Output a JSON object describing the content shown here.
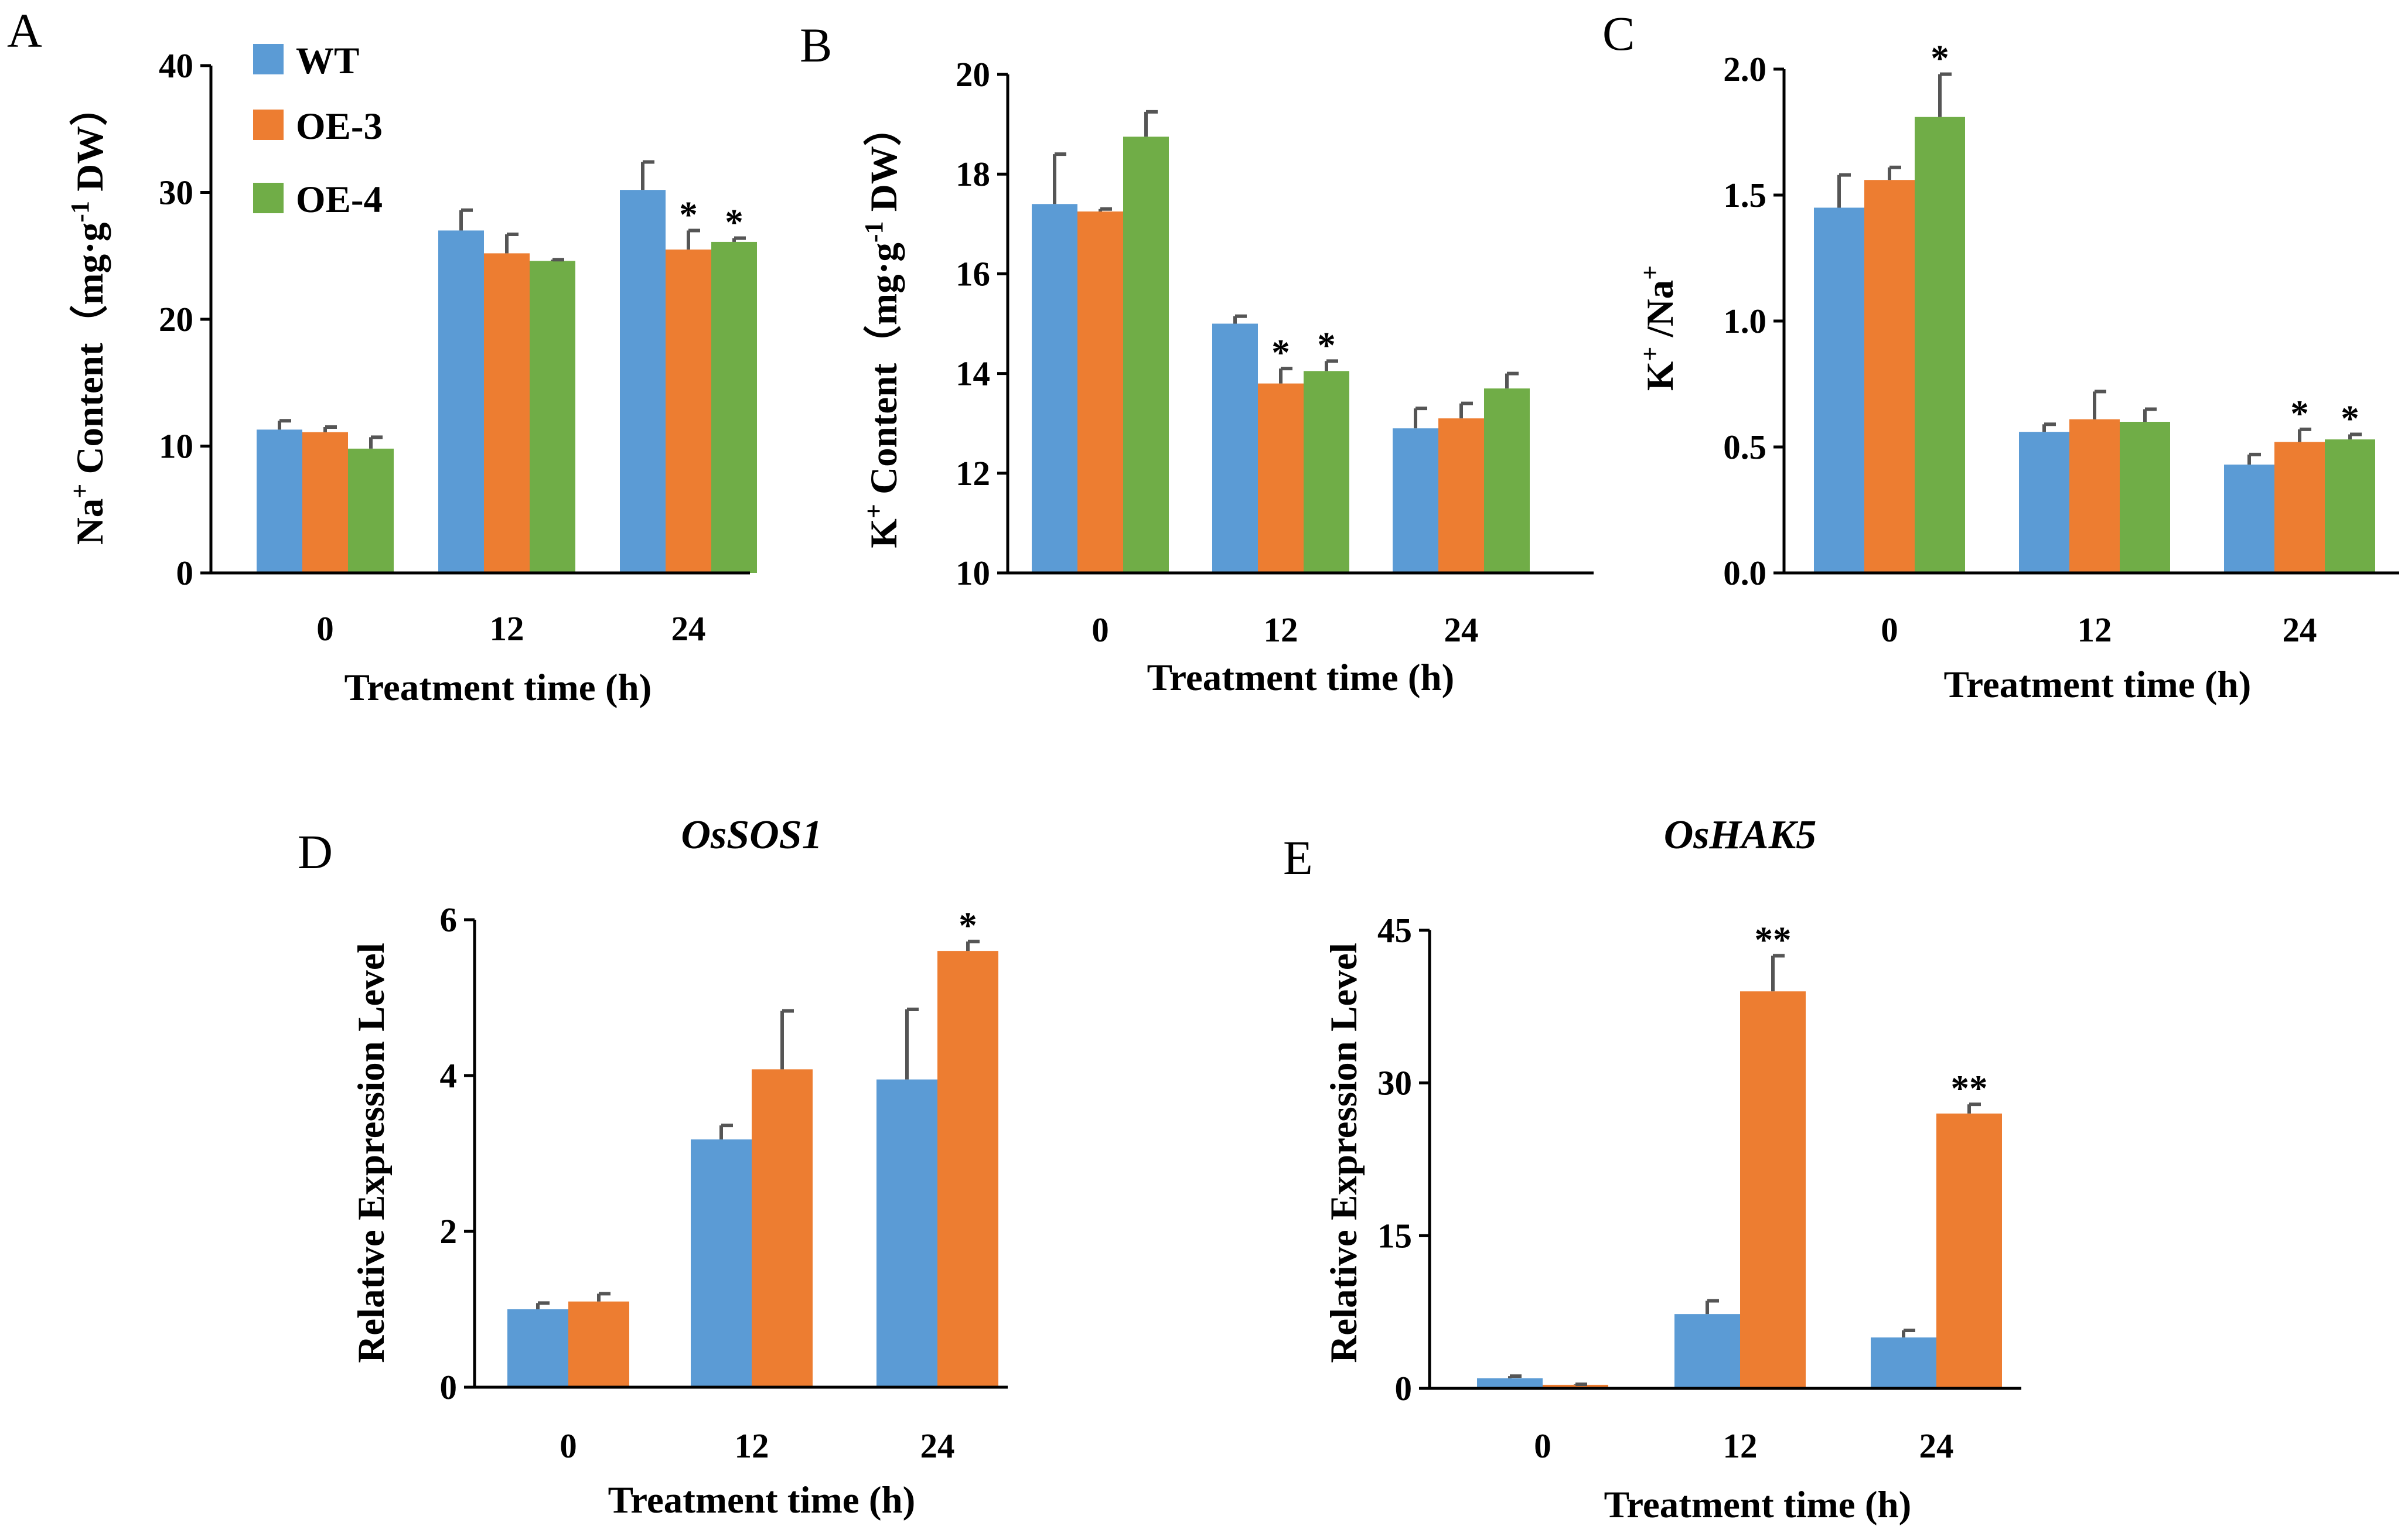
{
  "colors": {
    "WT": "#5B9BD5",
    "OE-3": "#ED7D31",
    "OE-4": "#70AD47"
  },
  "legend": [
    {
      "name": "WT",
      "color": "#5B9BD5"
    },
    {
      "name": "OE-3",
      "color": "#ED7D31"
    },
    {
      "name": "OE-4",
      "color": "#70AD47"
    }
  ],
  "chart_data": [
    {
      "panel": "A",
      "type": "bar",
      "title": "",
      "categories": [
        "0",
        "12",
        "24"
      ],
      "xlabel": "Treatment time (h)",
      "ylabel_main": "Na",
      "ylabel_sup": "+",
      "ylabel_rest": " Content（mg·g",
      "ylabel_sup2": "-1",
      "ylabel_end": " DW）",
      "ylim": [
        0,
        40
      ],
      "yticks": [
        "0",
        "10",
        "20",
        "30",
        "40"
      ],
      "series": [
        {
          "name": "WT",
          "values": [
            11.3,
            27.0,
            30.2
          ],
          "errors": [
            0.7,
            1.6,
            2.2
          ],
          "sig": [
            "",
            "",
            ""
          ]
        },
        {
          "name": "OE-3",
          "values": [
            11.1,
            25.2,
            25.5
          ],
          "errors": [
            0.4,
            1.5,
            1.5
          ],
          "sig": [
            "",
            "",
            "*"
          ]
        },
        {
          "name": "OE-4",
          "values": [
            9.8,
            24.6,
            26.1
          ],
          "errors": [
            0.9,
            0.1,
            0.3
          ],
          "sig": [
            "",
            "",
            "*"
          ]
        }
      ]
    },
    {
      "panel": "B",
      "type": "bar",
      "title": "",
      "categories": [
        "0",
        "12",
        "24"
      ],
      "xlabel": "Treatment time (h)",
      "ylabel_main": "K",
      "ylabel_sup": "+",
      "ylabel_rest": " Content（mg·g",
      "ylabel_sup2": "-1",
      "ylabel_end": " DW）",
      "ylim": [
        10,
        20
      ],
      "yticks": [
        "10",
        "12",
        "14",
        "16",
        "18",
        "20"
      ],
      "series": [
        {
          "name": "WT",
          "values": [
            17.4,
            15.0,
            12.9
          ],
          "errors": [
            1.0,
            0.15,
            0.4
          ],
          "sig": [
            "",
            "",
            ""
          ]
        },
        {
          "name": "OE-3",
          "values": [
            17.25,
            13.8,
            13.1
          ],
          "errors": [
            0.05,
            0.3,
            0.3
          ],
          "sig": [
            "",
            "*",
            ""
          ]
        },
        {
          "name": "OE-4",
          "values": [
            18.75,
            14.05,
            13.7
          ],
          "errors": [
            0.5,
            0.2,
            0.3
          ],
          "sig": [
            "",
            "*",
            ""
          ]
        }
      ]
    },
    {
      "panel": "C",
      "type": "bar",
      "title": "",
      "categories": [
        "0",
        "12",
        "24"
      ],
      "xlabel": "Treatment time (h)",
      "ylabel_main": "K",
      "ylabel_sup": "+",
      "ylabel_rest": " /Na",
      "ylabel_sup2": "+",
      "ylabel_end": "",
      "ylim": [
        0,
        2.0
      ],
      "yticks": [
        "0.0",
        "0.5",
        "1.0",
        "1.5",
        "2.0"
      ],
      "series": [
        {
          "name": "WT",
          "values": [
            1.45,
            0.56,
            0.43
          ],
          "errors": [
            0.13,
            0.03,
            0.04
          ],
          "sig": [
            "",
            "",
            ""
          ]
        },
        {
          "name": "OE-3",
          "values": [
            1.56,
            0.61,
            0.52
          ],
          "errors": [
            0.05,
            0.11,
            0.05
          ],
          "sig": [
            "",
            "",
            "*"
          ]
        },
        {
          "name": "OE-4",
          "values": [
            1.81,
            0.6,
            0.53
          ],
          "errors": [
            0.17,
            0.05,
            0.02
          ],
          "sig": [
            "*",
            "",
            "*"
          ]
        }
      ]
    },
    {
      "panel": "D",
      "type": "bar",
      "title": "OsSOS1",
      "categories": [
        "0",
        "12",
        "24"
      ],
      "xlabel": "Treatment time (h)",
      "ylabel_main": "Relative Expression Level",
      "ylabel_sup": "",
      "ylabel_rest": "",
      "ylabel_sup2": "",
      "ylabel_end": "",
      "ylim": [
        0,
        6
      ],
      "yticks": [
        "0",
        "2",
        "4",
        "6"
      ],
      "series": [
        {
          "name": "WT",
          "values": [
            1.0,
            3.18,
            3.95
          ],
          "errors": [
            0.08,
            0.18,
            0.9
          ],
          "sig": [
            "",
            "",
            ""
          ]
        },
        {
          "name": "OE-3",
          "values": [
            1.1,
            4.08,
            5.6
          ],
          "errors": [
            0.1,
            0.75,
            0.12
          ],
          "sig": [
            "",
            "",
            "*"
          ]
        }
      ]
    },
    {
      "panel": "E",
      "type": "bar",
      "title": "OsHAK5",
      "categories": [
        "0",
        "12",
        "24"
      ],
      "xlabel": "Treatment time (h)",
      "ylabel_main": "Relative Expression Level",
      "ylabel_sup": "",
      "ylabel_rest": "",
      "ylabel_sup2": "",
      "ylabel_end": "",
      "ylim": [
        0,
        45
      ],
      "yticks": [
        "0",
        "15",
        "30",
        "45"
      ],
      "series": [
        {
          "name": "WT",
          "values": [
            1.0,
            7.3,
            5.0
          ],
          "errors": [
            0.2,
            1.3,
            0.7
          ],
          "sig": [
            "",
            "",
            ""
          ]
        },
        {
          "name": "OE-3",
          "values": [
            0.35,
            39.0,
            27.0
          ],
          "errors": [
            0.05,
            3.5,
            0.9
          ],
          "sig": [
            "",
            "**",
            "**"
          ]
        }
      ]
    }
  ]
}
